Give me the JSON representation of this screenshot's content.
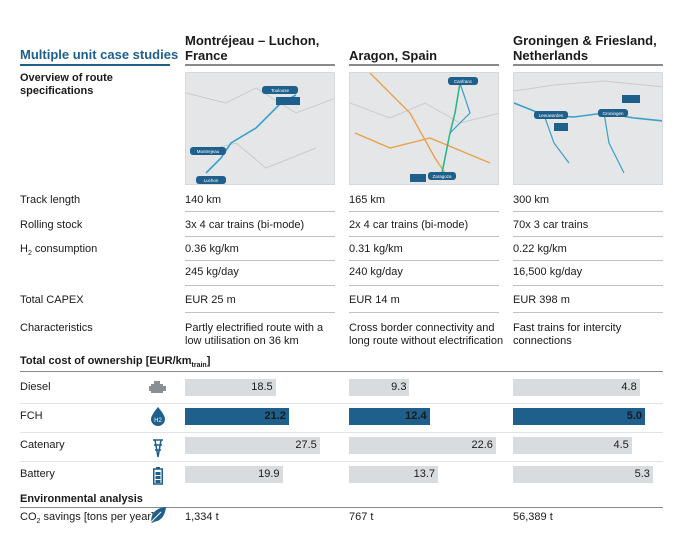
{
  "header": {
    "title": "Multiple unit case studies",
    "subtitle": "Overview of route specifications",
    "columns": [
      {
        "name": "Montréjeau – Luchon, France"
      },
      {
        "name": "Aragon, Spain"
      },
      {
        "name": "Groningen & Friesland, Netherlands"
      }
    ]
  },
  "maps": [
    {
      "labels": [
        "Toulouse",
        "Montrejeau",
        "Luchon"
      ]
    },
    {
      "labels": [
        "Canfranc",
        "Zaragoza"
      ]
    },
    {
      "labels": [
        "Leeuwarden",
        "Groningen"
      ]
    }
  ],
  "spec_rows": [
    {
      "label": "Track length",
      "values": [
        "140 km",
        "165 km",
        "300 km"
      ]
    },
    {
      "label": "Rolling stock",
      "values": [
        "3x 4 car trains (bi-mode)",
        "2x 4 car trains (bi-mode)",
        "70x 3 car trains"
      ]
    },
    {
      "label_main": "H",
      "label_sub": "2",
      "label_rest": " consumption",
      "values": [
        "0.36 kg/km",
        "0.31 kg/km",
        "0.22 kg/km"
      ]
    },
    {
      "label": "",
      "values": [
        "245 kg/day",
        "240 kg/day",
        "16,500 kg/day"
      ]
    },
    {
      "label": "Total CAPEX",
      "values": [
        "EUR 25 m",
        "EUR 14 m",
        "EUR 398 m"
      ]
    },
    {
      "label": "Characteristics",
      "values": [
        "Partly electrified route with a low utilisation on 36 km",
        "Cross border connectivity and long route without electrification",
        "Fast trains for intercity connections"
      ]
    }
  ],
  "tco_head": {
    "main": "Total cost of ownership [EUR/km",
    "sub": "train",
    "close": "]"
  },
  "env_head": "Environmental analysis",
  "co2_label": {
    "main": "CO",
    "sub": "2",
    "rest": " savings [tons per year]"
  },
  "co2_values": [
    "1,334 t",
    "767 t",
    "56,389 t"
  ],
  "colors": {
    "accent": "#1f5f8b",
    "highlight_bar": "#1f5f8b",
    "grey_bar": "#d9dcdf",
    "icon": "#1f5f8b"
  },
  "icons": [
    "engine-icon",
    "hydrogen-drop-icon",
    "catenary-pylon-icon",
    "battery-icon",
    "leaf-icon"
  ],
  "chart_data": {
    "type": "bar",
    "orientation": "horizontal",
    "title": "Total cost of ownership [EUR/km train]",
    "categories": [
      "Diesel",
      "FCH",
      "Catenary",
      "Battery"
    ],
    "series": [
      {
        "name": "Montréjeau – Luchon, France",
        "values": [
          18.5,
          21.2,
          27.5,
          19.9
        ]
      },
      {
        "name": "Aragon, Spain",
        "values": [
          9.3,
          12.4,
          22.6,
          13.7
        ]
      },
      {
        "name": "Groningen & Friesland, Netherlands",
        "values": [
          4.8,
          5.0,
          4.5,
          5.3
        ]
      }
    ],
    "highlight_category": "FCH",
    "value_labels": [
      [
        "18.5",
        "21.2",
        "27.5",
        "19.9"
      ],
      [
        "9.3",
        "12.4",
        "22.6",
        "13.7"
      ],
      [
        "4.8",
        "5.0",
        "4.5",
        "5.3"
      ]
    ]
  }
}
